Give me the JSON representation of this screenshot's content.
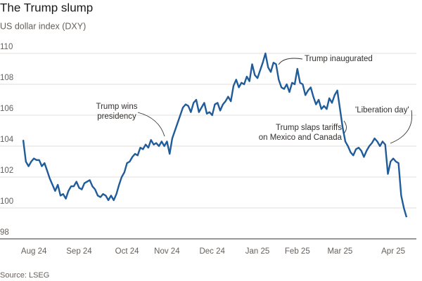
{
  "chart_data": {
    "type": "line",
    "title": "The Trump slump",
    "subtitle": "US dollar index (DXY)",
    "source": "Source: LSEG",
    "categories": [
      null,
      null,
      null,
      null,
      "Aug 24",
      null,
      null,
      null,
      null,
      null,
      null,
      null,
      null,
      null,
      null,
      null,
      null,
      null,
      null,
      null,
      null,
      "Sep 24",
      null,
      null,
      null,
      null,
      null,
      null,
      null,
      null,
      null,
      null,
      null,
      null,
      null,
      null,
      null,
      null,
      null,
      "Oct 24",
      null,
      null,
      null,
      null,
      null,
      null,
      null,
      null,
      null,
      null,
      null,
      null,
      null,
      null,
      "Nov 24",
      null,
      null,
      null,
      null,
      null,
      null,
      null,
      null,
      null,
      null,
      null,
      null,
      null,
      null,
      null,
      null,
      "Dec 24",
      null,
      null,
      null,
      null,
      null,
      null,
      null,
      null,
      null,
      null,
      null,
      null,
      null,
      null,
      null,
      null,
      "Jan 25",
      null,
      null,
      null,
      null,
      null,
      null,
      null,
      null,
      null,
      null,
      null,
      null,
      null,
      null,
      "Feb 25",
      null,
      null,
      null,
      null,
      null,
      null,
      null,
      null,
      null,
      null,
      null,
      null,
      null,
      null,
      null,
      "Mar 25",
      null,
      null,
      null,
      null,
      null,
      null,
      null,
      null,
      null,
      null,
      null,
      null,
      null,
      null,
      null,
      null,
      null,
      null,
      null,
      "Apr 25",
      null,
      null,
      null,
      null,
      null
    ],
    "series": [
      {
        "name": "DXY",
        "color": "#1f5c99",
        "values": [
          104.4,
          103.0,
          102.7,
          103.0,
          103.2,
          103.1,
          103.1,
          102.7,
          102.9,
          102.4,
          101.9,
          101.5,
          101.1,
          101.5,
          100.8,
          100.9,
          100.6,
          101.1,
          101.4,
          101.4,
          101.7,
          101.3,
          101.2,
          101.6,
          101.7,
          101.8,
          101.4,
          101.2,
          100.8,
          100.7,
          100.9,
          100.8,
          100.5,
          100.8,
          100.5,
          100.9,
          101.5,
          102.0,
          102.3,
          102.9,
          103.0,
          103.3,
          103.5,
          103.4,
          103.9,
          103.8,
          104.1,
          103.9,
          104.4,
          104.1,
          104.2,
          104.0,
          104.3,
          104.0,
          104.3,
          103.5,
          104.5,
          105.0,
          105.5,
          106.0,
          106.5,
          106.7,
          106.6,
          106.2,
          106.8,
          107.0,
          106.2,
          106.5,
          106.8,
          106.1,
          106.2,
          106.0,
          106.7,
          106.8,
          106.3,
          106.7,
          106.9,
          107.2,
          106.9,
          107.9,
          108.3,
          107.8,
          108.1,
          108.0,
          108.5,
          108.2,
          109.3,
          108.6,
          108.4,
          108.9,
          109.4,
          110.0,
          109.1,
          108.8,
          109.4,
          109.3,
          108.3,
          107.8,
          107.7,
          108.0,
          107.5,
          108.1,
          108.0,
          109.0,
          108.1,
          108.0,
          107.3,
          107.6,
          107.8,
          107.2,
          106.7,
          107.0,
          106.4,
          106.6,
          106.4,
          107.1,
          106.8,
          107.3,
          107.6,
          106.4,
          105.2,
          104.3,
          104.0,
          103.6,
          103.4,
          103.8,
          103.9,
          103.7,
          103.3,
          103.7,
          104.0,
          104.2,
          104.5,
          104.3,
          104.0,
          104.3,
          104.1,
          102.2,
          103.0,
          103.2,
          103.0,
          102.9,
          100.8,
          100.0,
          99.4
        ]
      }
    ],
    "ylim": [
      98,
      110.5
    ],
    "yticks": [
      98,
      100,
      102,
      104,
      106,
      108,
      110
    ],
    "grid": true,
    "annotations": [
      {
        "text": [
          "Trump wins",
          "presidency"
        ]
      },
      {
        "text": [
          "Trump inaugurated"
        ]
      },
      {
        "text": [
          "Trump slaps tariffs",
          "on Mexico and Canada"
        ]
      },
      {
        "text": [
          "'Liberation day'"
        ]
      }
    ]
  }
}
